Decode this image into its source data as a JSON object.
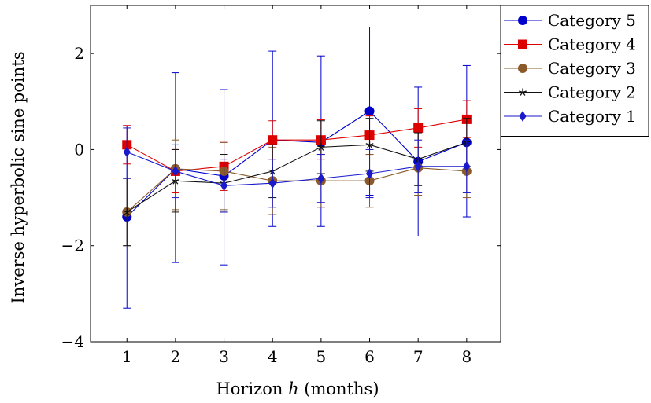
{
  "chart_data": {
    "type": "line",
    "title": "",
    "xlabel": "Horizon h (months)",
    "xlabel_prefix": "Horizon ",
    "xlabel_var": "h",
    "xlabel_suffix": " (months)",
    "ylabel": "Inverse hyperbolic sine points",
    "x": [
      1,
      2,
      3,
      4,
      5,
      6,
      7,
      8
    ],
    "xlim": [
      0.25,
      8.7
    ],
    "ylim": [
      -4,
      3
    ],
    "xticks": [
      1,
      2,
      3,
      4,
      5,
      6,
      7,
      8
    ],
    "yticks": [
      -4,
      -2,
      0,
      2
    ],
    "ytick_labels": [
      "−4",
      "−2",
      "0",
      "2"
    ],
    "grid": false,
    "legend_position": "outside top-right",
    "error_bars": true,
    "series": [
      {
        "name": "Category 5",
        "color": "#0000cc",
        "marker": "circle",
        "values": [
          -1.4,
          -0.4,
          -0.55,
          0.2,
          0.15,
          0.8,
          -0.25,
          0.15
        ],
        "lower": [
          -3.3,
          -2.35,
          -2.4,
          -1.6,
          -1.6,
          -0.95,
          -1.8,
          -1.4
        ],
        "upper": [
          0.5,
          1.6,
          1.25,
          2.05,
          1.95,
          2.55,
          1.3,
          1.75
        ]
      },
      {
        "name": "Category 4",
        "color": "#dd0000",
        "marker": "square",
        "values": [
          0.1,
          -0.45,
          -0.35,
          0.2,
          0.2,
          0.3,
          0.45,
          0.63
        ],
        "lower": [
          -0.3,
          -0.9,
          -0.85,
          -0.2,
          -0.2,
          -0.1,
          0.05,
          0.25
        ],
        "upper": [
          0.5,
          0.0,
          0.15,
          0.6,
          0.62,
          0.7,
          0.85,
          1.02
        ]
      },
      {
        "name": "Category 3",
        "color": "#8b5a2b",
        "marker": "circle",
        "values": [
          -1.3,
          -0.4,
          -0.45,
          -0.65,
          -0.65,
          -0.65,
          -0.38,
          -0.45
        ],
        "lower": [
          -2.0,
          -1.25,
          -1.25,
          -1.35,
          -1.2,
          -1.2,
          -0.95,
          -1.0
        ],
        "upper": [
          -0.6,
          0.2,
          0.15,
          0.05,
          -0.1,
          -0.1,
          0.18,
          0.1
        ]
      },
      {
        "name": "Category 2",
        "color": "#111111",
        "marker": "star",
        "values": [
          -1.3,
          -0.65,
          -0.7,
          -0.45,
          0.05,
          0.1,
          -0.2,
          0.15
        ],
        "lower": [
          -2.0,
          -1.3,
          -1.3,
          -1.0,
          -0.5,
          -0.45,
          -0.75,
          -0.35
        ],
        "upper": [
          -0.6,
          0.0,
          -0.1,
          0.1,
          0.6,
          0.65,
          0.35,
          0.65
        ]
      },
      {
        "name": "Category 1",
        "color": "#1a1acc",
        "marker": "diamond",
        "values": [
          -0.05,
          -0.45,
          -0.75,
          -0.7,
          -0.6,
          -0.5,
          -0.35,
          -0.35
        ],
        "lower": [
          -0.6,
          -1.0,
          -1.3,
          -1.2,
          -1.1,
          -1.0,
          -0.9,
          -0.9
        ],
        "upper": [
          0.45,
          0.1,
          -0.2,
          -0.2,
          -0.1,
          0.0,
          0.2,
          0.2
        ]
      }
    ]
  }
}
